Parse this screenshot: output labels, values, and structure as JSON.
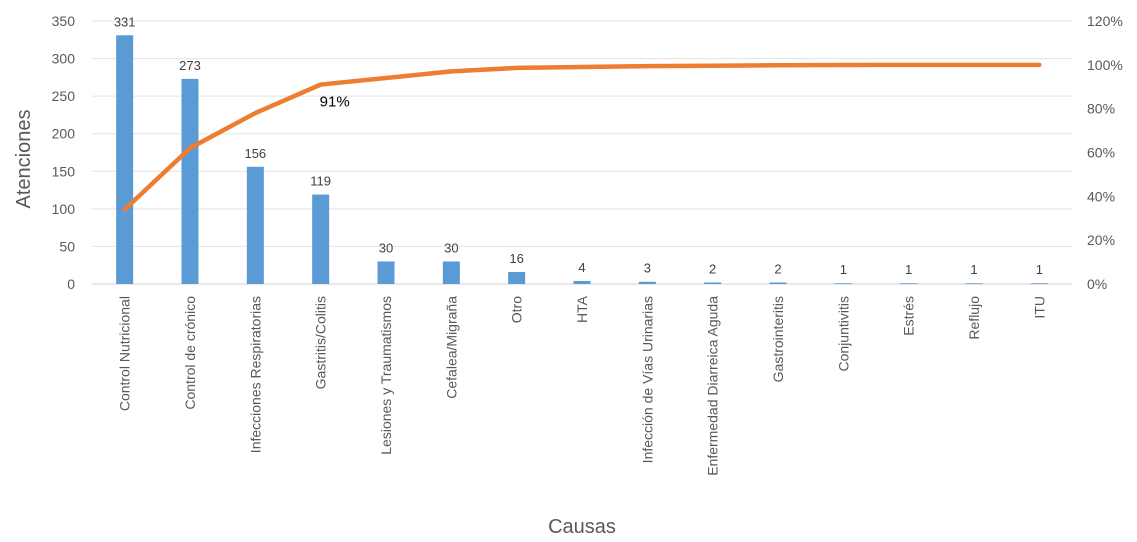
{
  "chart_data": {
    "type": "bar",
    "categories": [
      "Control Nutricional",
      "Control de crónico",
      "Infecciones Respiratorias",
      "Gastritis/Colitis",
      "Lesiones y Traumatismos",
      "Cefalea/Migraña",
      "Otro",
      "HTA",
      "Infección de Vías Urinarias",
      "Enfermedad Diarreica Aguda",
      "Gastrointeritis",
      "Conjuntivitis",
      "Estrés",
      "Reflujo",
      "ITU"
    ],
    "series": [
      {
        "type": "bar",
        "axis": "left",
        "color": "#5B9BD5",
        "values": [
          331,
          273,
          156,
          119,
          30,
          30,
          16,
          4,
          3,
          2,
          2,
          1,
          1,
          1,
          1
        ],
        "labels": [
          "331",
          "273",
          "156",
          "119",
          "30",
          "30",
          "16",
          "4",
          "3",
          "2",
          "2",
          "1",
          "1",
          "1",
          "1"
        ]
      },
      {
        "type": "line",
        "axis": "right",
        "color": "#ED7D31",
        "values": [
          34,
          62,
          78,
          91,
          94,
          97,
          98.6,
          99,
          99.4,
          99.6,
          99.8,
          99.9,
          100,
          100,
          100
        ]
      }
    ],
    "annotation": {
      "text": "91%",
      "category_index": 3
    },
    "xlabel": "Causas",
    "ylabel": "Atenciones",
    "ylim": [
      0,
      350
    ],
    "y_ticks": [
      "0",
      "50",
      "100",
      "150",
      "200",
      "250",
      "300",
      "350"
    ],
    "y2lim": [
      0,
      120
    ],
    "y2_ticks": [
      "0%",
      "20%",
      "40%",
      "60%",
      "80%",
      "100%",
      "120%"
    ],
    "grid": true,
    "legend": "none"
  }
}
